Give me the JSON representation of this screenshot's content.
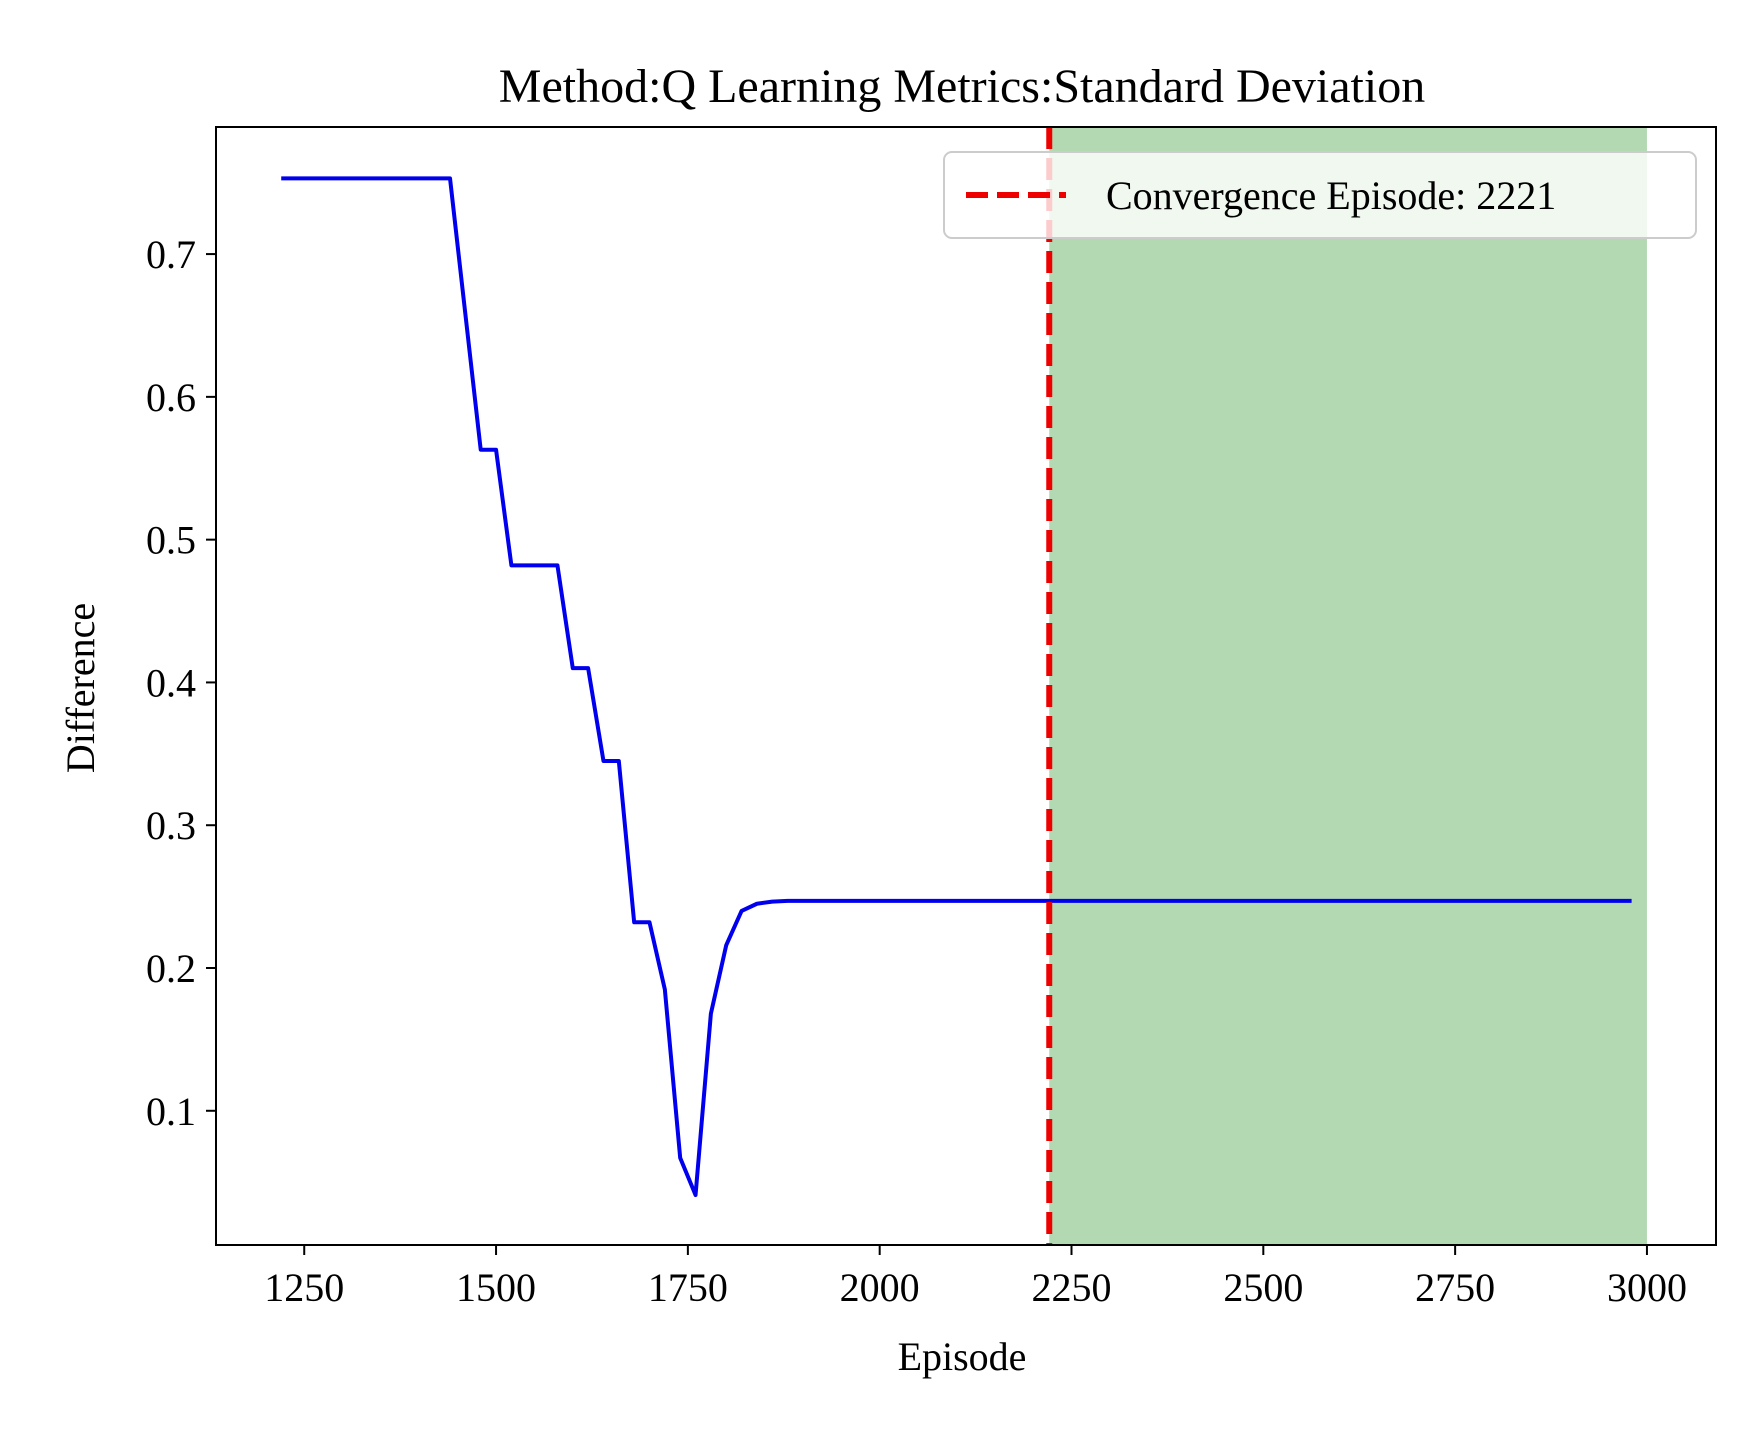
{
  "chart_data": {
    "type": "line",
    "title": "Method:Q Learning   Metrics:Standard Deviation",
    "xlabel": "Episode",
    "ylabel": "Difference",
    "xlim": [
      1135,
      3090
    ],
    "ylim": [
      0.006,
      0.789
    ],
    "xticks": [
      1250,
      1500,
      1750,
      2000,
      2250,
      2500,
      2750,
      3000
    ],
    "yticks": [
      0.1,
      0.2,
      0.3,
      0.4,
      0.5,
      0.6,
      0.7
    ],
    "xtick_labels": [
      "1250",
      "1500",
      "1750",
      "2000",
      "2250",
      "2500",
      "2750",
      "3000"
    ],
    "ytick_labels": [
      "0.1",
      "0.2",
      "0.3",
      "0.4",
      "0.5",
      "0.6",
      "0.7"
    ],
    "grid": false,
    "legend_position": "top-right",
    "legend_label": "Convergence Episode: 2221",
    "convergence_episode": 2221,
    "shaded_region": {
      "x_start": 2221,
      "x_end": 3000,
      "color": "#b3d9b3"
    },
    "series": [
      {
        "color": "#0000ee",
        "x": [
          1220,
          1440,
          1460,
          1480,
          1500,
          1520,
          1540,
          1560,
          1580,
          1600,
          1620,
          1640,
          1660,
          1680,
          1700,
          1720,
          1740,
          1760,
          1780,
          1800,
          1820,
          1840,
          1860,
          1880,
          1900,
          2000,
          2221,
          2500,
          2750,
          2980
        ],
        "y": [
          0.753,
          0.753,
          0.658,
          0.563,
          0.563,
          0.482,
          0.482,
          0.482,
          0.482,
          0.41,
          0.41,
          0.345,
          0.345,
          0.232,
          0.232,
          0.185,
          0.067,
          0.041,
          0.168,
          0.216,
          0.24,
          0.245,
          0.2465,
          0.247,
          0.247,
          0.247,
          0.247,
          0.247,
          0.247,
          0.247
        ]
      }
    ],
    "colors": {
      "line": "#0000ee",
      "vline": "#ee0000",
      "shade": "#b3d9b3"
    }
  }
}
